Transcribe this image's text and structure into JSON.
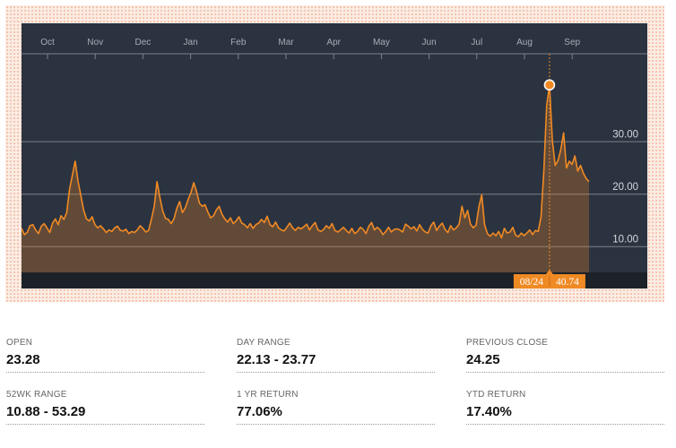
{
  "chart_data": {
    "type": "area",
    "x_labels": [
      "Oct",
      "Nov",
      "Dec",
      "Jan",
      "Feb",
      "Mar",
      "Apr",
      "May",
      "Jun",
      "Jul",
      "Aug",
      "Sep"
    ],
    "y_ticks": [
      "10.00",
      "20.00",
      "30.00"
    ],
    "ylim": [
      5,
      46
    ],
    "series": [
      {
        "values": [
          13.4,
          12.2,
          12.6,
          13.9,
          14.1,
          13.1,
          12.4,
          13.8,
          14.3,
          13.5,
          12.6,
          14.4,
          15.2,
          14.1,
          15.8,
          15.1,
          16.4,
          20.8,
          23.5,
          26.2,
          22.4,
          19.7,
          16.9,
          15.2,
          14.8,
          15.6,
          14.1,
          13.5,
          13.9,
          13.3,
          12.6,
          13.1,
          12.8,
          13.5,
          13.8,
          13.0,
          12.9,
          13.2,
          12.4,
          12.8,
          12.6,
          13.1,
          13.9,
          13.4,
          12.7,
          13.0,
          15.1,
          17.6,
          22.3,
          19.3,
          16.7,
          15.3,
          15.1,
          14.3,
          15.2,
          17.2,
          18.5,
          16.4,
          17.3,
          18.9,
          20.2,
          22.1,
          20.4,
          18.2,
          17.6,
          17.9,
          16.5,
          15.4,
          15.8,
          16.9,
          17.6,
          16.1,
          15.2,
          14.6,
          15.4,
          14.3,
          14.8,
          15.6,
          14.4,
          14.1,
          13.5,
          14.3,
          13.4,
          14.1,
          14.4,
          15.1,
          14.5,
          15.7,
          14.1,
          13.7,
          14.6,
          13.5,
          13.1,
          12.9,
          13.6,
          14.4,
          13.5,
          13.0,
          13.6,
          13.3,
          13.7,
          14.2,
          13.1,
          13.9,
          14.5,
          13.1,
          12.8,
          13.2,
          13.9,
          13.4,
          14.3,
          13.0,
          12.7,
          13.1,
          13.6,
          13.0,
          12.5,
          13.4,
          12.4,
          12.8,
          13.6,
          13.2,
          12.4,
          13.8,
          14.5,
          13.1,
          13.6,
          13.1,
          12.2,
          12.8,
          13.6,
          12.7,
          13.2,
          13.3,
          13.1,
          12.7,
          14.2,
          13.8,
          13.3,
          13.7,
          12.9,
          14.1,
          13.2,
          12.7,
          12.5,
          13.9,
          14.6,
          13.0,
          13.8,
          14.4,
          13.2,
          12.6,
          13.9,
          13.1,
          13.5,
          14.2,
          17.6,
          15.4,
          16.8,
          14.2,
          13.5,
          14.0,
          17.5,
          19.8,
          14.1,
          12.4,
          11.9,
          12.5,
          12.0,
          12.8,
          11.6,
          13.4,
          12.5,
          12.7,
          13.6,
          12.1,
          11.8,
          12.5,
          12.0,
          12.5,
          13.1,
          12.2,
          13.0,
          12.8,
          15.6,
          24.4,
          36.8,
          40.74,
          30.2,
          25.4,
          26.3,
          28.4,
          31.6,
          24.9,
          26.2,
          25.6,
          27.2,
          24.3,
          25.4,
          23.9,
          22.9,
          22.3
        ]
      }
    ],
    "tooltip": {
      "date": "08/24",
      "value": "40.74"
    },
    "colors": {
      "line": "#f08a24",
      "plot_bg": "#2b3340",
      "grid": "#7a8289",
      "label": "#a6adb5"
    }
  },
  "stats": [
    {
      "label": "OPEN",
      "value": "23.28"
    },
    {
      "label": "DAY RANGE",
      "value": "22.13 - 23.77"
    },
    {
      "label": "PREVIOUS CLOSE",
      "value": "24.25"
    },
    {
      "label": "52WK RANGE",
      "value": "10.88 - 53.29"
    },
    {
      "label": "1 YR RETURN",
      "value": "77.06%"
    },
    {
      "label": "YTD RETURN",
      "value": "17.40%"
    }
  ]
}
